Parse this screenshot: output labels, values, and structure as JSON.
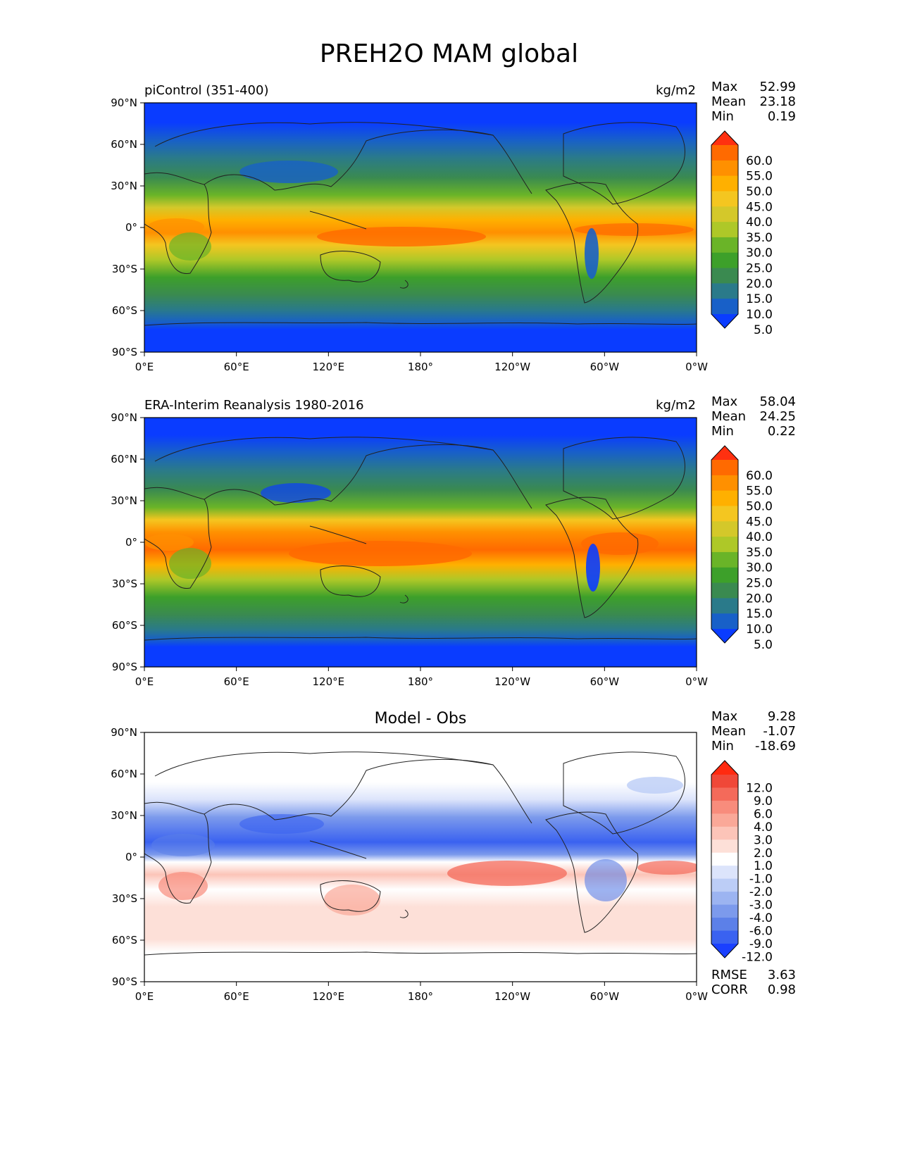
{
  "title": "PREH2O MAM global",
  "lon_ticks": [
    "0°E",
    "60°E",
    "120°E",
    "180°",
    "120°W",
    "60°W",
    "0°W"
  ],
  "lat_ticks": [
    "90°N",
    "60°N",
    "30°N",
    "0°",
    "30°S",
    "60°S",
    "90°S"
  ],
  "panels": [
    {
      "label": "piControl (351-400)",
      "units": "kg/m2",
      "stats": [
        {
          "name": "Max",
          "value": "52.99"
        },
        {
          "name": "Mean",
          "value": "23.18"
        },
        {
          "name": "Min",
          "value": "0.19"
        }
      ],
      "colorbar": {
        "labels": [
          "60.0",
          "55.0",
          "50.0",
          "45.0",
          "40.0",
          "35.0",
          "30.0",
          "25.0",
          "20.0",
          "15.0",
          "10.0",
          "5.0"
        ],
        "colors": [
          "#ff3010",
          "#ff6a00",
          "#ff9000",
          "#ffb000",
          "#f4c620",
          "#d4c82a",
          "#aec828",
          "#6ab428",
          "#3da02a",
          "#3a8a50",
          "#2a7a8a",
          "#1860c8",
          "#0a3cff"
        ]
      }
    },
    {
      "label": "ERA-Interim Reanalysis 1980-2016",
      "units": "kg/m2",
      "stats": [
        {
          "name": "Max",
          "value": "58.04"
        },
        {
          "name": "Mean",
          "value": "24.25"
        },
        {
          "name": "Min",
          "value": "0.22"
        }
      ],
      "colorbar": {
        "labels": [
          "60.0",
          "55.0",
          "50.0",
          "45.0",
          "40.0",
          "35.0",
          "30.0",
          "25.0",
          "20.0",
          "15.0",
          "10.0",
          "5.0"
        ],
        "colors": [
          "#ff3010",
          "#ff6a00",
          "#ff9000",
          "#ffb000",
          "#f4c620",
          "#d4c82a",
          "#aec828",
          "#6ab428",
          "#3da02a",
          "#3a8a50",
          "#2a7a8a",
          "#1860c8",
          "#0a3cff"
        ]
      }
    },
    {
      "label": "Model - Obs",
      "units": "",
      "stats": [
        {
          "name": "Max",
          "value": "9.28"
        },
        {
          "name": "Mean",
          "value": "-1.07"
        },
        {
          "name": "Min",
          "value": "-18.69"
        }
      ],
      "colorbar": {
        "labels": [
          "12.0",
          "9.0",
          "6.0",
          "4.0",
          "3.0",
          "2.0",
          "1.0",
          "-1.0",
          "-2.0",
          "-3.0",
          "-4.0",
          "-6.0",
          "-9.0",
          "-12.0"
        ],
        "colors": [
          "#ff2a10",
          "#f04838",
          "#f46a5a",
          "#f88c7c",
          "#faa898",
          "#fcc4b8",
          "#fde0d8",
          "#ffffff",
          "#dce4fb",
          "#bccdf6",
          "#9cb4f1",
          "#7c9aec",
          "#5c80e8",
          "#3a62f0",
          "#1a40ff"
        ]
      },
      "metrics": [
        {
          "name": "RMSE",
          "value": "3.63"
        },
        {
          "name": "CORR",
          "value": "0.98"
        }
      ]
    }
  ]
}
